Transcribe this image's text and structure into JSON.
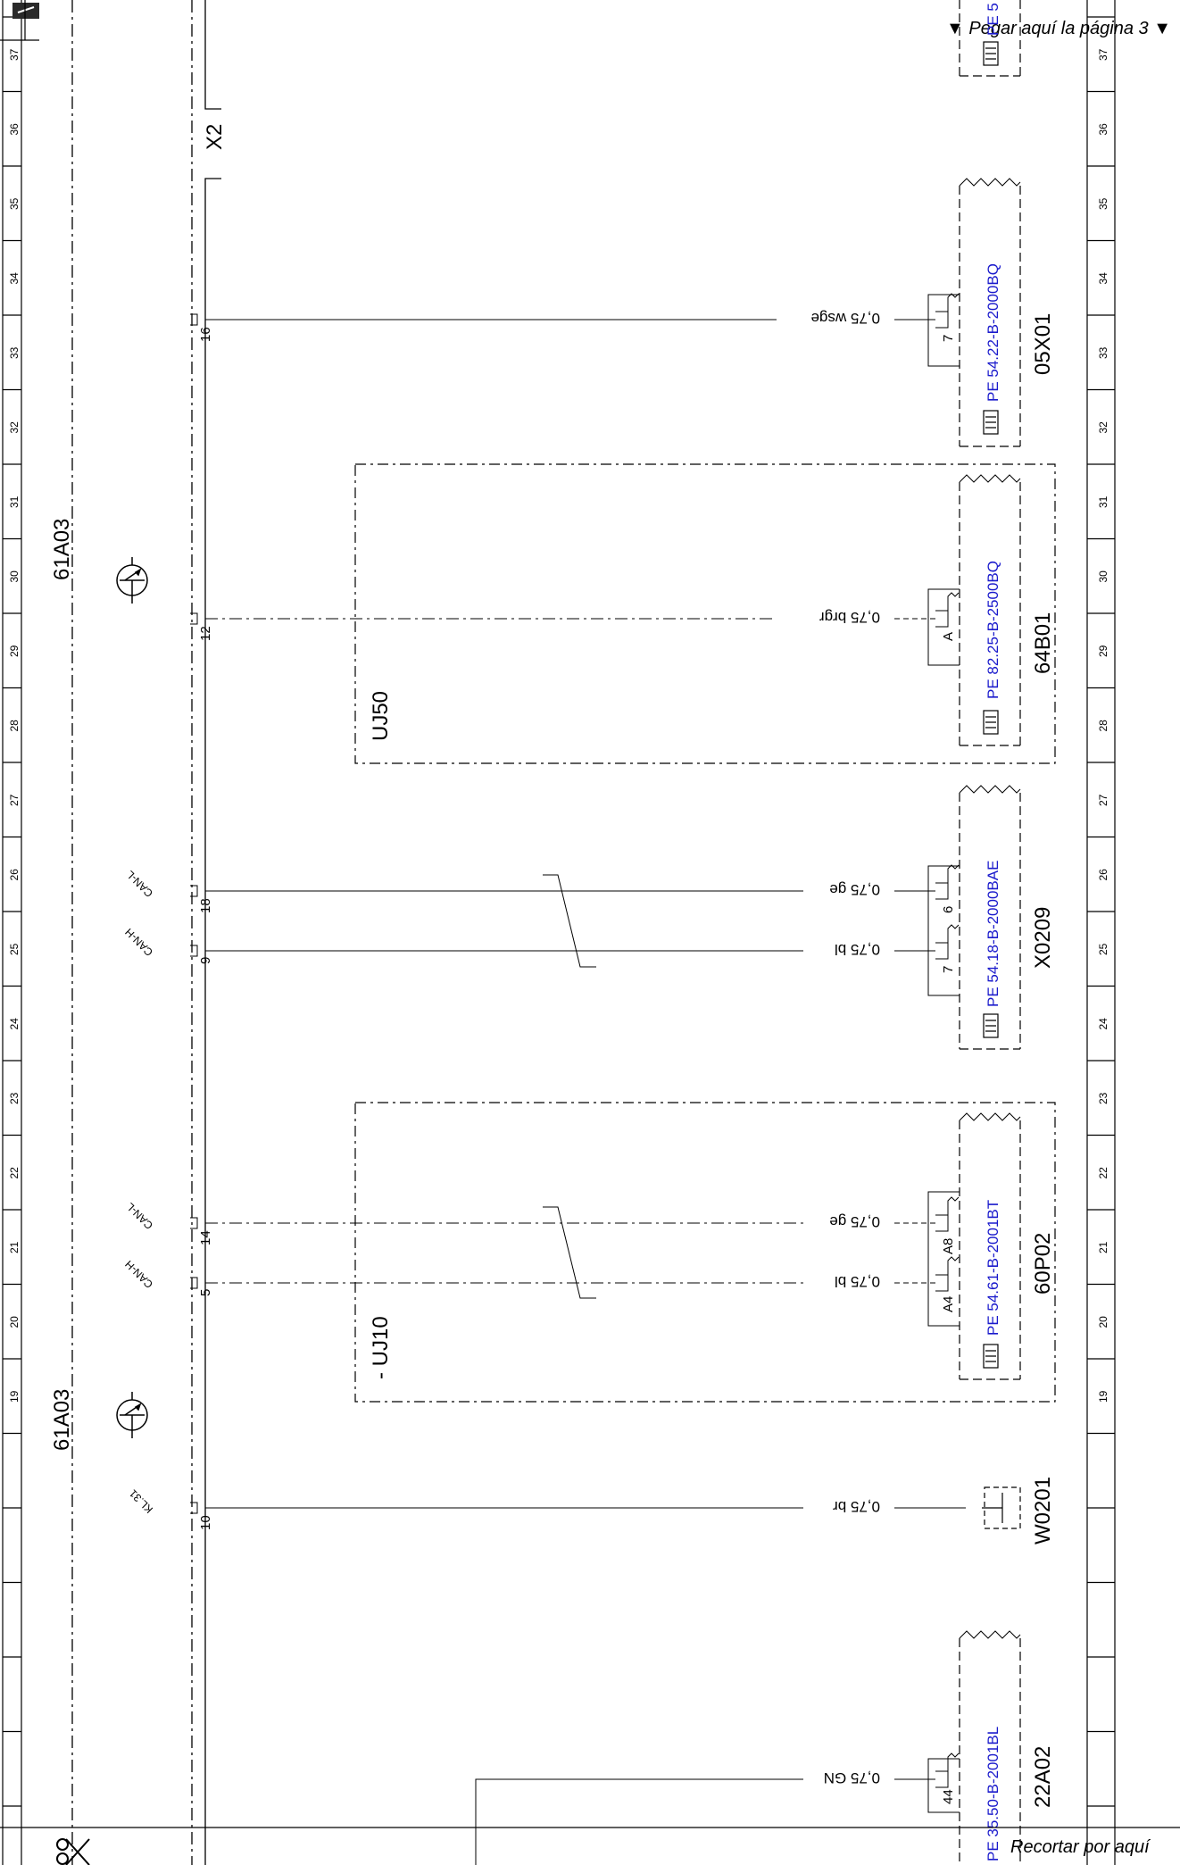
{
  "header": {
    "paste_note": "▼ Pegar aquí la página 3 ▼"
  },
  "footer": {
    "cut_note": "Recortar por aquí"
  },
  "grid_numbers": [
    "37",
    "36",
    "35",
    "34",
    "33",
    "32",
    "31",
    "30",
    "29",
    "28",
    "27",
    "26",
    "25",
    "24",
    "23",
    "22",
    "21",
    "20",
    "19"
  ],
  "control_units": [
    {
      "name": "61A03",
      "section": "upper"
    },
    {
      "name": "61A03",
      "section": "lower"
    }
  ],
  "splice_connector": {
    "name": "X2"
  },
  "wiring_modules": [
    {
      "name": "UJ50"
    },
    {
      "name": "- UJ10"
    }
  ],
  "pins": {
    "p16": "16",
    "p12": "12",
    "p18": "18",
    "p9": "9",
    "p14": "14",
    "p5": "5",
    "p10": "10"
  },
  "signals": {
    "canl_1": "CAN-L",
    "canh_1": "CAN-H",
    "canl_2": "CAN-L",
    "canh_2": "CAN-H",
    "kl31": "KL.31"
  },
  "wires": {
    "w1": "0,75 wsge",
    "w2": "0,75 brgr",
    "w3": "0,75 ge",
    "w4": "0,75 bl",
    "w5": "0,75 ge",
    "w6": "0,75 bl",
    "w7": "0,75 br",
    "w8": "0,75 GN"
  },
  "connector_pins": {
    "c1": "7",
    "c2": "A",
    "c3": "6",
    "c4": "7",
    "c5": "A8",
    "c6": "A4",
    "c7": "44"
  },
  "connectors": [
    {
      "id": "05X01",
      "part": "PE 54.22-B-2000BQ"
    },
    {
      "id": "64B01",
      "part": "PE 82.25-B-2500BQ"
    },
    {
      "id": "X0209",
      "part": "PE 54.18-B-2000BAE"
    },
    {
      "id": "60P02",
      "part": "PE 54.61-B-2001BT"
    },
    {
      "id": "W0201"
    },
    {
      "id": "22A02",
      "part": "PE 35.50-B-2001BL"
    }
  ],
  "top_partial_part": "PE 5",
  "bottom_partial_part": "PE"
}
